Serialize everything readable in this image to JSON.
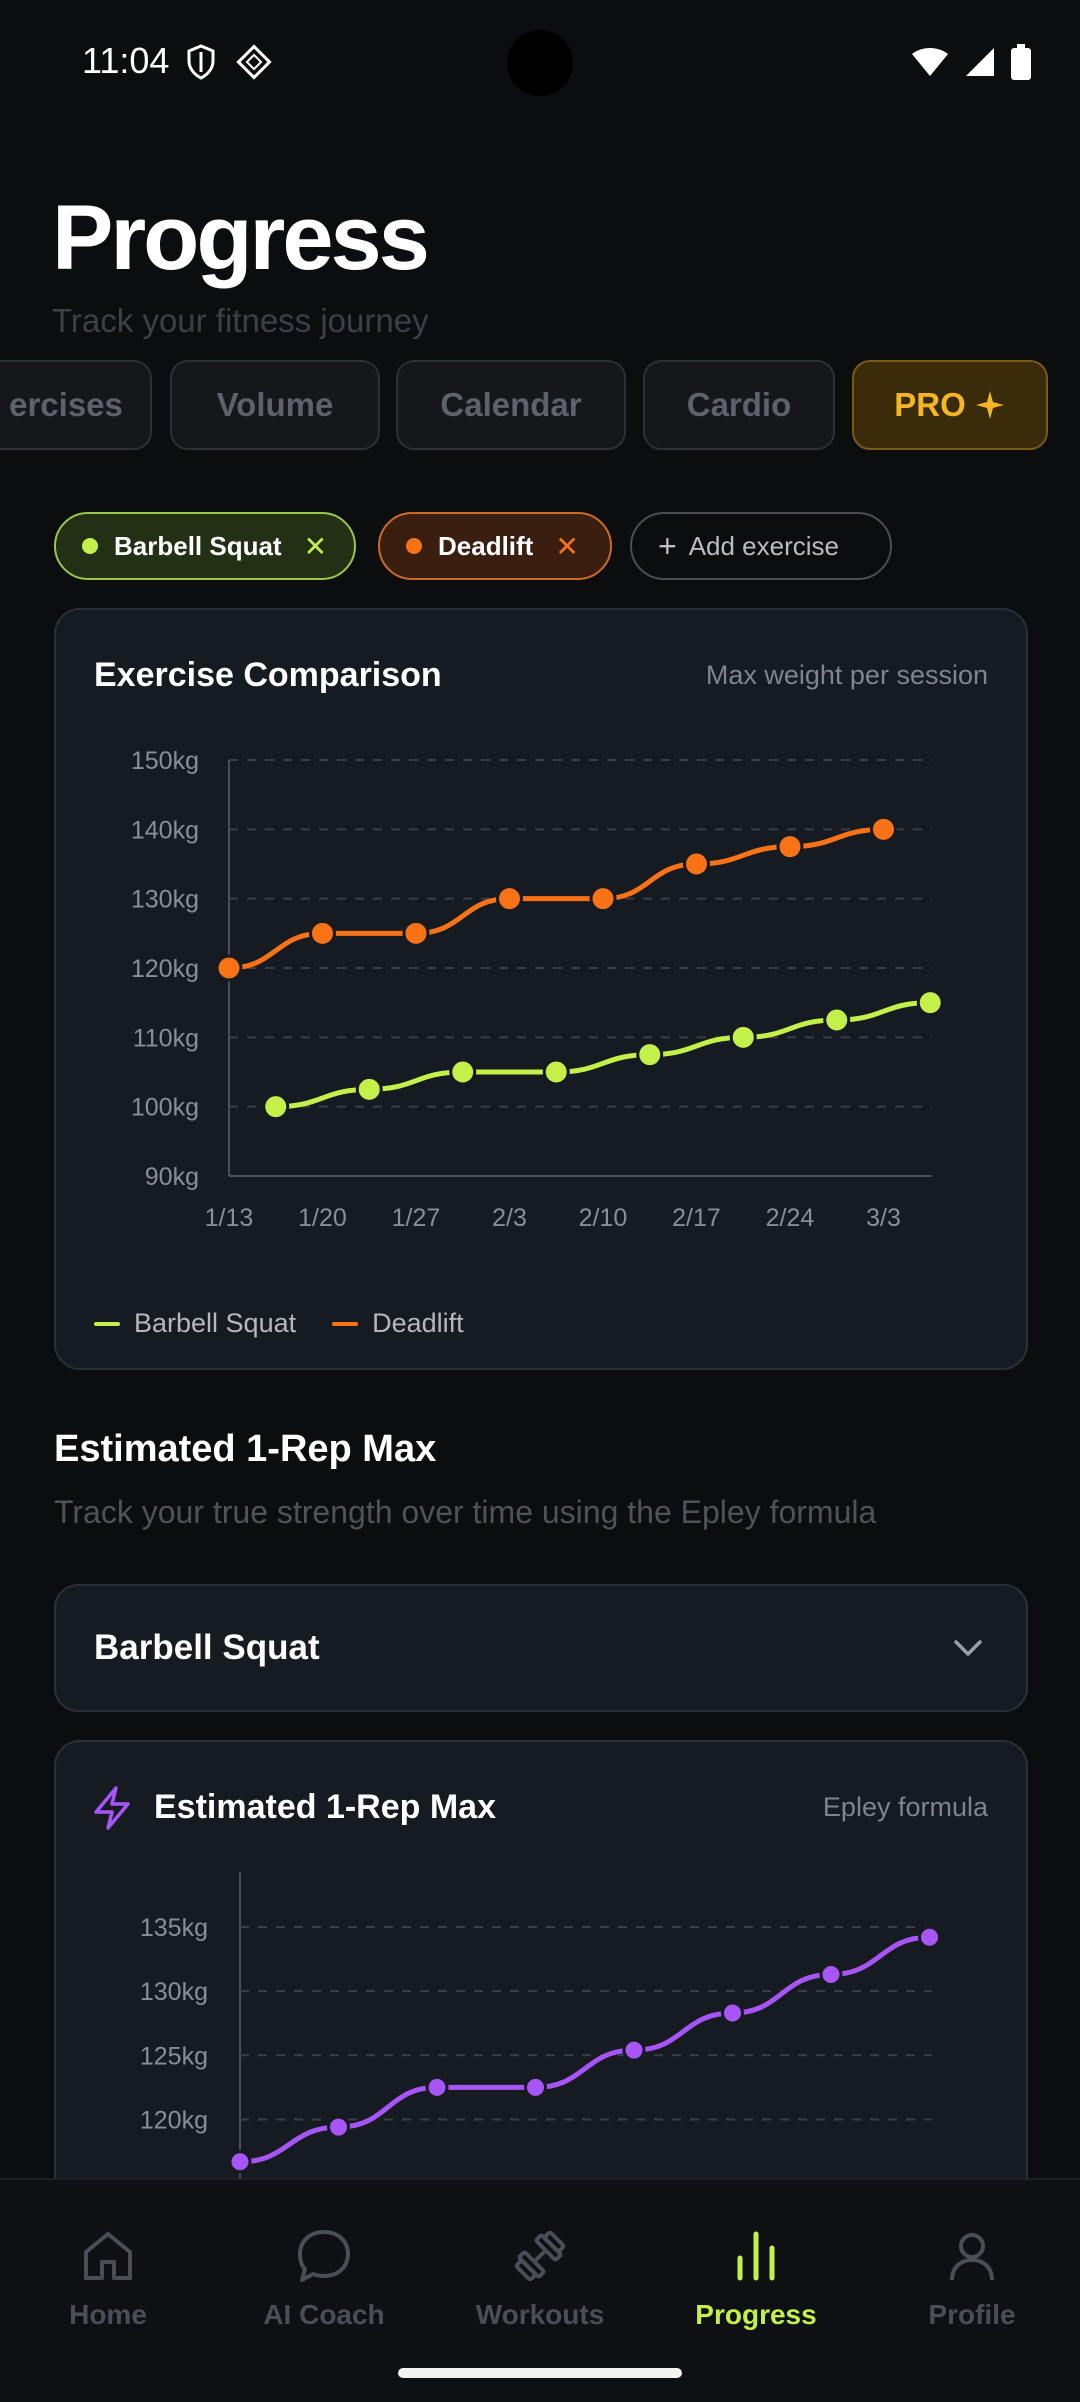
{
  "status": {
    "time": "11:04"
  },
  "header": {
    "title": "Progress",
    "subtitle": "Track your fitness journey"
  },
  "tabs": [
    {
      "label": "ercises"
    },
    {
      "label": "Volume"
    },
    {
      "label": "Calendar"
    },
    {
      "label": "Cardio"
    },
    {
      "label": "PRO"
    }
  ],
  "chips": {
    "squat": "Barbell Squat",
    "deadlift": "Deadlift",
    "add": "Add exercise"
  },
  "colors": {
    "squat": "#c4f04a",
    "deadlift": "#f97316",
    "orm": "#a855f7",
    "accent": "#c4f04a"
  },
  "comparison": {
    "title": "Exercise Comparison",
    "subtitle": "Max weight per session",
    "legend": [
      "Barbell Squat",
      "Deadlift"
    ]
  },
  "orm_section": {
    "title": "Estimated 1-Rep Max",
    "subtitle": "Track your true strength over time using the Epley formula",
    "selected": "Barbell Squat"
  },
  "orm_card": {
    "title": "Estimated 1-Rep Max",
    "subtitle": "Epley formula"
  },
  "nav": [
    {
      "label": "Home",
      "icon": "home-icon"
    },
    {
      "label": "AI Coach",
      "icon": "chat-bubble-icon"
    },
    {
      "label": "Workouts",
      "icon": "dumbbell-icon"
    },
    {
      "label": "Progress",
      "icon": "bar-chart-icon"
    },
    {
      "label": "Profile",
      "icon": "user-icon"
    }
  ],
  "chart_data": [
    {
      "type": "line",
      "title": "Exercise Comparison",
      "x_ticks": [
        "1/13",
        "1/20",
        "1/27",
        "2/3",
        "2/10",
        "2/17",
        "2/24",
        "3/3"
      ],
      "y_ticks": [
        "150kg",
        "140kg",
        "130kg",
        "120kg",
        "110kg",
        "100kg",
        "90kg"
      ],
      "ylim": [
        90,
        150
      ],
      "grid": true,
      "legend_position": "bottom-left",
      "series": [
        {
          "name": "Barbell Squat",
          "color": "#c4f04a",
          "x": [
            0.5,
            1.5,
            2.5,
            3.5,
            4.5,
            5.5,
            6.5,
            7.5
          ],
          "values": [
            100,
            102.5,
            105,
            105,
            107.5,
            110,
            112.5,
            115
          ]
        },
        {
          "name": "Deadlift",
          "color": "#f97316",
          "x": [
            0,
            1,
            2,
            3,
            4,
            5,
            6,
            7
          ],
          "values": [
            120,
            125,
            125,
            130,
            130,
            135,
            137.5,
            140
          ]
        }
      ]
    },
    {
      "type": "line",
      "title": "Estimated 1-Rep Max",
      "y_ticks": [
        "135kg",
        "130kg",
        "125kg",
        "120kg"
      ],
      "ylim": [
        117,
        137
      ],
      "grid": true,
      "series": [
        {
          "name": "Estimated 1-Rep Max",
          "color": "#a855f7",
          "x": [
            0,
            1,
            2,
            3,
            4,
            5,
            6,
            7
          ],
          "values": [
            116.7,
            119.4,
            122.5,
            122.5,
            125.4,
            128.3,
            131.3,
            134.2
          ]
        }
      ]
    }
  ]
}
